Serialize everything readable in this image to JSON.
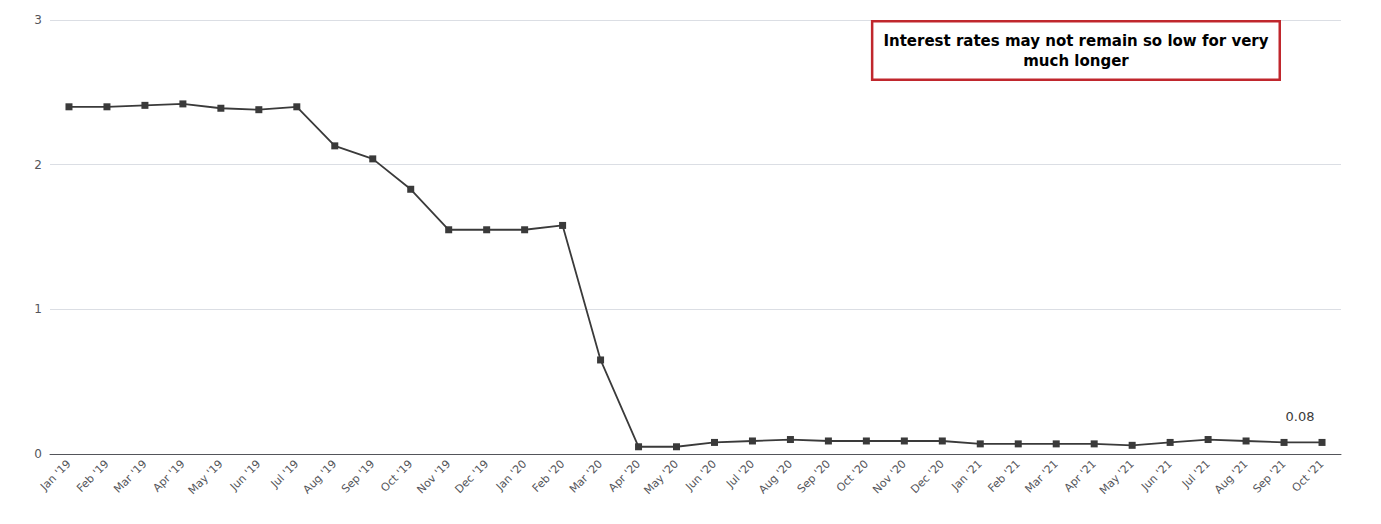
{
  "chart_data": {
    "type": "line",
    "categories": [
      "Jan '19",
      "Feb '19",
      "Mar '19",
      "Apr '19",
      "May '19",
      "Jun '19",
      "Jul '19",
      "Aug '19",
      "Sep '19",
      "Oct '19",
      "Nov '19",
      "Dec '19",
      "Jan '20",
      "Feb '20",
      "Mar '20",
      "Apr '20",
      "May '20",
      "Jun '20",
      "Jul '20",
      "Aug '20",
      "Sep '20",
      "Oct '20",
      "Nov '20",
      "Dec '20",
      "Jan '21",
      "Feb '21",
      "Mar '21",
      "Apr '21",
      "May '21",
      "Jun '21",
      "Jul '21",
      "Aug '21",
      "Sep '21",
      "Oct '21"
    ],
    "values": [
      2.4,
      2.4,
      2.41,
      2.42,
      2.39,
      2.38,
      2.4,
      2.13,
      2.04,
      1.83,
      1.55,
      1.55,
      1.55,
      1.58,
      0.65,
      0.05,
      0.05,
      0.08,
      0.09,
      0.1,
      0.09,
      0.09,
      0.09,
      0.09,
      0.07,
      0.07,
      0.07,
      0.07,
      0.06,
      0.08,
      0.1,
      0.09,
      0.08,
      0.08
    ],
    "color": "#3a3a3a",
    "marker": "square",
    "ylim": [
      0,
      3
    ],
    "yticks": [
      0,
      1,
      2,
      3
    ],
    "grid": true,
    "annotations": [
      {
        "text": "0.08",
        "x": "Oct '21",
        "y": 0.08
      },
      {
        "text": "Interest rates may not remain so low for very\nmuch longer",
        "color": "#c0272d"
      }
    ]
  }
}
